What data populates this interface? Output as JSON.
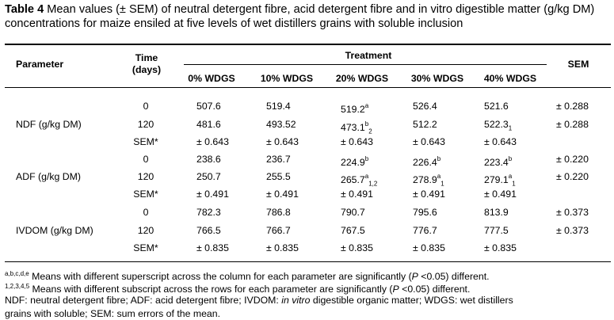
{
  "caption": {
    "label": "Table 4",
    "text": " Mean values (± SEM) of neutral detergent fibre, acid detergent fibre and in vitro digestible matter (g/kg DM) concentrations for maize ensiled at five levels of wet distillers grains with soluble inclusion"
  },
  "header": {
    "parameter": "Parameter",
    "time_line1": "Time",
    "time_line2": "(days)",
    "treatment": "Treatment",
    "sem": "SEM",
    "levels": [
      "0% WDGS",
      "10% WDGS",
      "20% WDGS",
      "30% WDGS",
      "40% WDGS"
    ]
  },
  "groups": [
    {
      "parameter": "NDF (g/kg DM)",
      "rows": [
        {
          "time": "0",
          "values": [
            {
              "v": "507.6"
            },
            {
              "v": "519.4"
            },
            {
              "v": "519.2",
              "sup": "a"
            },
            {
              "v": "526.4"
            },
            {
              "v": "521.6"
            }
          ],
          "sem": "± 0.288"
        },
        {
          "time": "120",
          "values": [
            {
              "v": "481.6"
            },
            {
              "v": "493.52"
            },
            {
              "v": "473.1",
              "sup": "b",
              "sub": "2"
            },
            {
              "v": "512.2"
            },
            {
              "v": "522.3",
              "sub": "1"
            }
          ],
          "sem": "± 0.288"
        },
        {
          "time": "SEM*",
          "values": [
            {
              "v": "± 0.643"
            },
            {
              "v": "± 0.643"
            },
            {
              "v": "± 0.643"
            },
            {
              "v": "± 0.643"
            },
            {
              "v": "± 0.643"
            }
          ],
          "sem": ""
        }
      ]
    },
    {
      "parameter": "ADF (g/kg DM)",
      "rows": [
        {
          "time": "0",
          "values": [
            {
              "v": "238.6"
            },
            {
              "v": "236.7"
            },
            {
              "v": "224.9",
              "sup": "b"
            },
            {
              "v": "226.4",
              "sup": "b"
            },
            {
              "v": "223.4",
              "sup": "b"
            }
          ],
          "sem": "± 0.220"
        },
        {
          "time": "120",
          "values": [
            {
              "v": "250.7"
            },
            {
              "v": "255.5"
            },
            {
              "v": "265.7",
              "sup": "a",
              "sub": "1,2"
            },
            {
              "v": "278.9",
              "sup": "a",
              "sub": "1"
            },
            {
              "v": "279.1",
              "sup": "a",
              "sub": "1"
            }
          ],
          "sem": "± 0.220"
        },
        {
          "time": "SEM*",
          "values": [
            {
              "v": "± 0.491"
            },
            {
              "v": "± 0.491"
            },
            {
              "v": "± 0.491"
            },
            {
              "v": "± 0.491"
            },
            {
              "v": "± 0.491"
            }
          ],
          "sem": ""
        }
      ]
    },
    {
      "parameter": "IVDOM (g/kg DM)",
      "rows": [
        {
          "time": "0",
          "values": [
            {
              "v": "782.3"
            },
            {
              "v": "786.8"
            },
            {
              "v": "790.7"
            },
            {
              "v": "795.6"
            },
            {
              "v": "813.9"
            }
          ],
          "sem": "± 0.373"
        },
        {
          "time": "120",
          "values": [
            {
              "v": "766.5"
            },
            {
              "v": "766.7"
            },
            {
              "v": "767.5"
            },
            {
              "v": "776.7"
            },
            {
              "v": "777.5"
            }
          ],
          "sem": "± 0.373"
        },
        {
          "time": "SEM*",
          "values": [
            {
              "v": "± 0.835"
            },
            {
              "v": "± 0.835"
            },
            {
              "v": "± 0.835"
            },
            {
              "v": "± 0.835"
            },
            {
              "v": "± 0.835"
            }
          ],
          "sem": ""
        }
      ]
    }
  ],
  "footnotes": {
    "sup_marks": "a,b,c,d,e",
    "sup_text_a": " Means with different superscript across the column for each parameter are significantly (",
    "p": "P",
    "sup_text_b": " <0.05) different.",
    "sub_marks": "1,2,3,4,5",
    "sub_text_a": " Means with different subscript across the rows for each parameter are significantly (",
    "sub_text_b": " <0.05) different.",
    "abbr_a": "NDF: neutral detergent fibre; ADF: acid detergent fibre; IVDOM: ",
    "abbr_italic": "in vitro",
    "abbr_b": " digestible organic matter; WDGS: wet distillers",
    "abbr_line2": "grains with soluble; SEM: sum errors of the mean."
  }
}
